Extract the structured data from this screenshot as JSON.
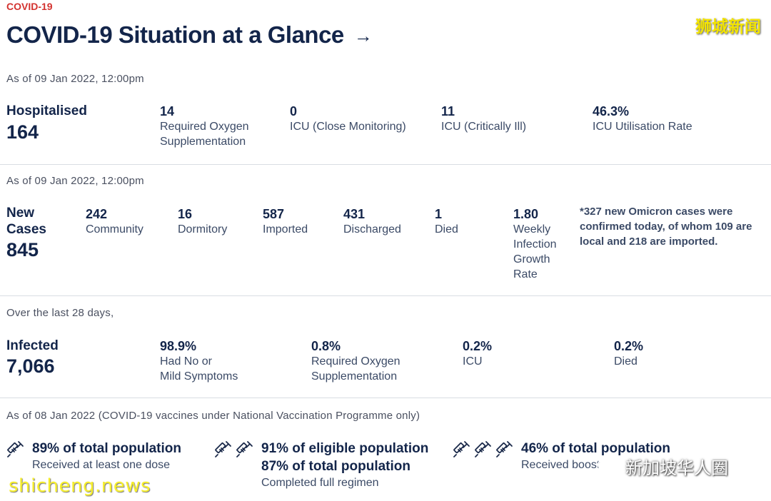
{
  "header": {
    "tag": "COVID-19",
    "title": "COVID-19 Situation at a Glance",
    "arrow": "→",
    "watermark": "狮城新闻"
  },
  "hospital": {
    "asof": "As of 09 Jan 2022, 12:00pm",
    "label": "Hospitalised",
    "total": "164",
    "stats": [
      {
        "value": "14",
        "label_lines": [
          "Required Oxygen",
          "Supplementation"
        ]
      },
      {
        "value": "0",
        "label_lines": [
          "ICU (Close Monitoring)"
        ]
      },
      {
        "value": "11",
        "label_lines": [
          "ICU (Critically Ill)"
        ]
      },
      {
        "value": "46.3%",
        "label_lines": [
          "ICU Utilisation Rate"
        ]
      }
    ]
  },
  "cases": {
    "asof": "As of 09 Jan 2022, 12:00pm",
    "label_lines": [
      "New",
      "Cases"
    ],
    "total": "845",
    "stats": [
      {
        "value": "242",
        "label_lines": [
          "Community"
        ]
      },
      {
        "value": "16",
        "label_lines": [
          "Dormitory"
        ]
      },
      {
        "value": "587",
        "label_lines": [
          "Imported"
        ]
      },
      {
        "value": "431",
        "label_lines": [
          "Discharged"
        ]
      },
      {
        "value": "1",
        "label_lines": [
          "Died"
        ]
      },
      {
        "value": "1.80",
        "label_lines": [
          "Weekly",
          "Infection",
          "Growth",
          "Rate"
        ]
      }
    ],
    "note_lines": [
      "*327 new Omicron cases were",
      "confirmed today, of whom 109 are",
      "local and 218 are imported."
    ]
  },
  "infected": {
    "asof": "Over the last 28 days,",
    "label": "Infected",
    "total": "7,066",
    "stats": [
      {
        "value": "98.9%",
        "label_lines": [
          "Had No or",
          "Mild Symptoms"
        ]
      },
      {
        "value": "0.8%",
        "label_lines": [
          "Required Oxygen",
          "Supplementation"
        ]
      },
      {
        "value": "0.2%",
        "label_lines": [
          "ICU"
        ]
      },
      {
        "value": "0.2%",
        "label_lines": [
          "Died"
        ]
      }
    ]
  },
  "vaccination": {
    "asof": "As of 08 Jan 2022 (COVID-19 vaccines under National Vaccination Programme only)",
    "items": [
      {
        "icon": "syringe-icon",
        "icon_count": 1,
        "title_lines": [
          "89% of total population"
        ],
        "sub": "Received at least one dose"
      },
      {
        "icon": "syringe-icon",
        "icon_count": 2,
        "title_lines": [
          "91% of eligible population",
          "87% of total population"
        ],
        "sub": "Completed full regimen"
      },
      {
        "icon": "syringe-icon",
        "icon_count": 3,
        "title_lines": [
          "46% of total population"
        ],
        "sub": "Received boost"
      }
    ]
  },
  "watermarks": {
    "bottom_left": "shicheng.news",
    "bottom_right": "新加坡华人圈"
  },
  "colors": {
    "accent": "#d3322f",
    "navy": "#13254a",
    "text": "#3b4a66"
  }
}
